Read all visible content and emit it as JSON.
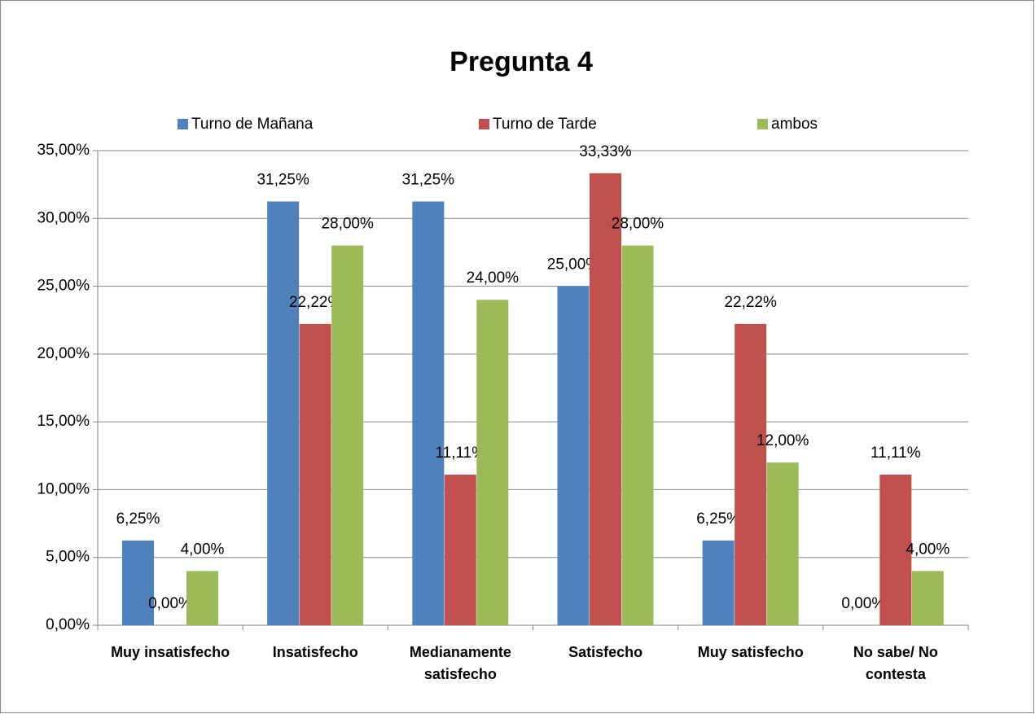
{
  "chart_data": {
    "type": "bar",
    "title": "Pregunta 4",
    "categories": [
      "Muy insatisfecho",
      "Insatisfecho",
      "Medianamente satisfecho",
      "Satisfecho",
      "Muy satisfecho",
      "No sabe/ No contesta"
    ],
    "series": [
      {
        "name": "Turno de Mañana",
        "color": "#4f81bd",
        "values": [
          6.25,
          31.25,
          31.25,
          25,
          6.25,
          0
        ],
        "value_labels": [
          "6,25%",
          "31,25%",
          "31,25%",
          "25,00%",
          "6,25%",
          "0,00%"
        ]
      },
      {
        "name": "Turno de Tarde",
        "color": "#c0504d",
        "values": [
          0,
          22.22,
          11.11,
          33.33,
          22.22,
          11.11
        ],
        "value_labels": [
          "0,00%",
          "22,22%",
          "11,11%",
          "33,33%",
          "22,22%",
          "11,11%"
        ]
      },
      {
        "name": "ambos",
        "color": "#9bbb59",
        "values": [
          4,
          28,
          24,
          28,
          12,
          4
        ],
        "value_labels": [
          "4,00%",
          "28,00%",
          "24,00%",
          "28,00%",
          "12,00%",
          "4,00%"
        ]
      }
    ],
    "ylim": [
      0,
      35
    ],
    "yticks": [
      {
        "value": 0,
        "label": "0,00%"
      },
      {
        "value": 5,
        "label": "5,00%"
      },
      {
        "value": 10,
        "label": "10,00%"
      },
      {
        "value": 15,
        "label": "15,00%"
      },
      {
        "value": 20,
        "label": "20,00%"
      },
      {
        "value": 25,
        "label": "25,00%"
      },
      {
        "value": 30,
        "label": "30,00%"
      },
      {
        "value": 35,
        "label": "35,00%"
      }
    ],
    "grid": true,
    "legend": "top"
  }
}
